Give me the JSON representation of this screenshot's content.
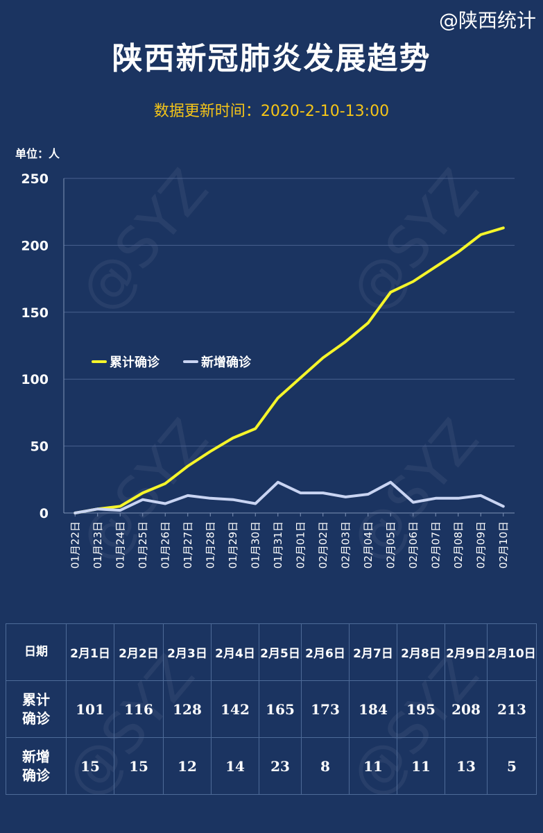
{
  "header": {
    "source": "@陕西统计",
    "title": "陕西新冠肺炎发展趋势",
    "update_time": "数据更新时间：2020-2-10-13:00",
    "unit": "单位：人"
  },
  "watermark": "@SYZ",
  "chart_data": {
    "type": "line",
    "title": "陕西新冠肺炎发展趋势",
    "ylabel": "单位：人",
    "xlabel": "",
    "ylim": [
      0,
      250
    ],
    "yticks": [
      0,
      50,
      100,
      150,
      200,
      250
    ],
    "grid": true,
    "legend_position": "middle-left",
    "x": [
      "01月22日",
      "01月23日",
      "01月24日",
      "01月25日",
      "01月26日",
      "01月27日",
      "01月28日",
      "01月29日",
      "01月30日",
      "01月31日",
      "02月01日",
      "02月02日",
      "02月03日",
      "02月04日",
      "02月05日",
      "02月06日",
      "02月07日",
      "02月08日",
      "02月09日",
      "02月10日"
    ],
    "series": [
      {
        "name": "累计确诊",
        "color": "#f5f52a",
        "values": [
          0,
          3,
          5,
          15,
          22,
          35,
          46,
          56,
          63,
          86,
          101,
          116,
          128,
          142,
          165,
          173,
          184,
          195,
          208,
          213
        ]
      },
      {
        "name": "新增确诊",
        "color": "#c9d4f2",
        "values": [
          0,
          3,
          2,
          10,
          7,
          13,
          11,
          10,
          7,
          23,
          15,
          15,
          12,
          14,
          23,
          8,
          11,
          11,
          13,
          5
        ]
      }
    ]
  },
  "table": {
    "date_label": "日期",
    "cumulative_label": [
      "累计",
      "确诊"
    ],
    "new_label": [
      "新增",
      "确诊"
    ],
    "dates": [
      "2月1日",
      "2月2日",
      "2月3日",
      "2月4日",
      "2月5日",
      "2月6日",
      "2月7日",
      "2月8日",
      "2月9日",
      "2月10日"
    ],
    "cumulative": [
      "101",
      "116",
      "128",
      "142",
      "165",
      "173",
      "184",
      "195",
      "208",
      "213"
    ],
    "new": [
      "15",
      "15",
      "12",
      "14",
      "23",
      "8",
      "11",
      "11",
      "13",
      "5"
    ]
  }
}
